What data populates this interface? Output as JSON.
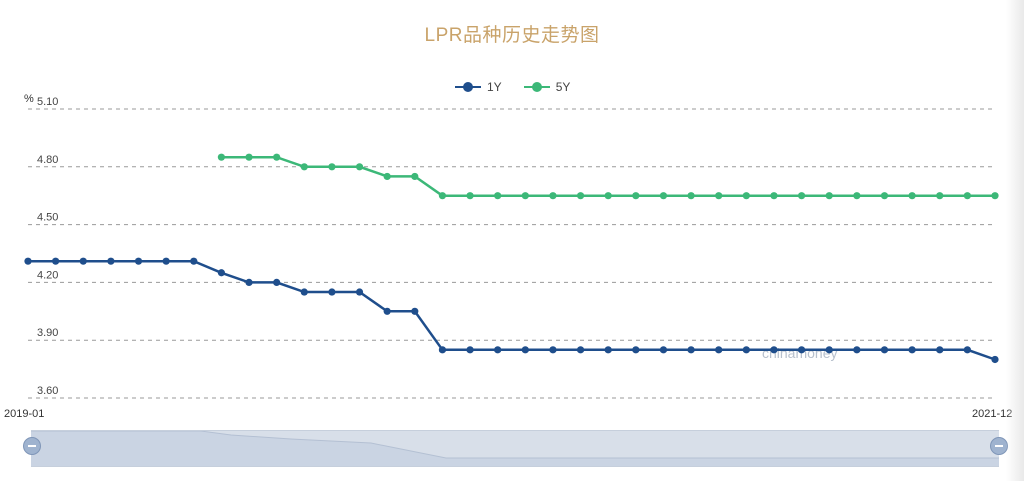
{
  "title": "LPR品种历史走势图",
  "unit_label": "%",
  "legend": [
    {
      "label": "1Y",
      "color": "#1f4e8c"
    },
    {
      "label": "5Y",
      "color": "#3cb878"
    }
  ],
  "watermark": "chinamoney",
  "range_start_label": "2019-01",
  "range_end_label": "2021-12",
  "chart_data": {
    "type": "line",
    "title": "LPR品种历史走势图",
    "ylabel": "%",
    "ylim": [
      3.6,
      5.1
    ],
    "y_ticks": [
      "5.10",
      "4.80",
      "4.50",
      "4.20",
      "3.90",
      "3.60"
    ],
    "grid": true,
    "legend_position": "top-center",
    "x_range": [
      "2019-01",
      "2021-12"
    ],
    "x": [
      "2019-01",
      "2019-02",
      "2019-03",
      "2019-04",
      "2019-05",
      "2019-06",
      "2019-07",
      "2019-08",
      "2019-09",
      "2019-10",
      "2019-11",
      "2019-12",
      "2020-01",
      "2020-02",
      "2020-03",
      "2020-04",
      "2020-05",
      "2020-06",
      "2020-07",
      "2020-08",
      "2020-09",
      "2020-10",
      "2020-11",
      "2020-12",
      "2021-01",
      "2021-02",
      "2021-03",
      "2021-04",
      "2021-05",
      "2021-06",
      "2021-07",
      "2021-08",
      "2021-09",
      "2021-10",
      "2021-11",
      "2021-12"
    ],
    "series": [
      {
        "name": "1Y",
        "color": "#1f4e8c",
        "values": [
          4.31,
          4.31,
          4.31,
          4.31,
          4.31,
          4.31,
          4.31,
          4.25,
          4.2,
          4.2,
          4.15,
          4.15,
          4.15,
          4.05,
          4.05,
          3.85,
          3.85,
          3.85,
          3.85,
          3.85,
          3.85,
          3.85,
          3.85,
          3.85,
          3.85,
          3.85,
          3.85,
          3.85,
          3.85,
          3.85,
          3.85,
          3.85,
          3.85,
          3.85,
          3.85,
          3.8
        ]
      },
      {
        "name": "5Y",
        "color": "#3cb878",
        "values": [
          null,
          null,
          null,
          null,
          null,
          null,
          null,
          4.85,
          4.85,
          4.85,
          4.8,
          4.8,
          4.8,
          4.75,
          4.75,
          4.65,
          4.65,
          4.65,
          4.65,
          4.65,
          4.65,
          4.65,
          4.65,
          4.65,
          4.65,
          4.65,
          4.65,
          4.65,
          4.65,
          4.65,
          4.65,
          4.65,
          4.65,
          4.65,
          4.65,
          4.65
        ]
      }
    ]
  }
}
